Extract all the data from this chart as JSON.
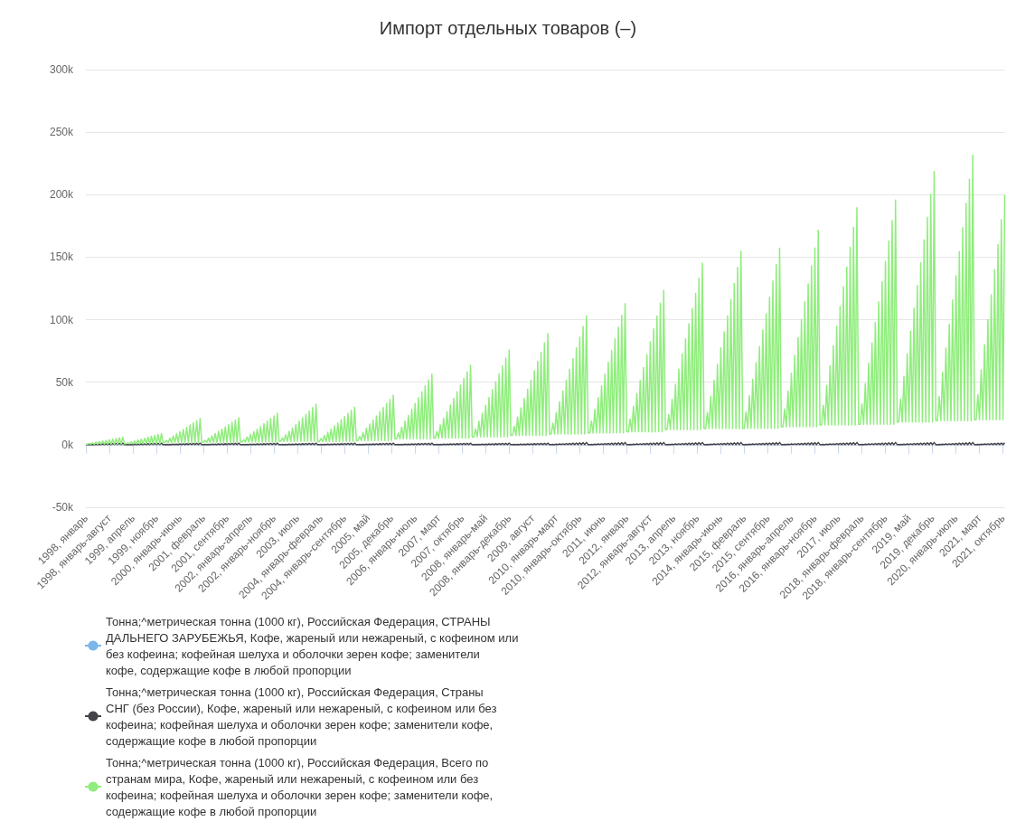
{
  "chart_data": {
    "type": "line",
    "title": "Импорт отдельных товаров (–)",
    "categories": [
      "1998, январь",
      null,
      null,
      null,
      null,
      null,
      null,
      null,
      null,
      null,
      null,
      null,
      null,
      null,
      "1998, январь-август",
      null,
      null,
      null,
      null,
      null,
      null,
      null,
      null,
      null,
      null,
      null,
      null,
      null,
      "1999, апрель",
      null,
      null,
      null,
      null,
      null,
      null,
      null,
      null,
      null,
      null,
      null,
      null,
      null,
      "1999, ноябрь",
      null,
      null,
      null,
      null,
      null,
      null,
      null,
      null,
      null,
      null,
      null,
      null,
      null,
      "2000, январь-июнь",
      null,
      null,
      null,
      null,
      null,
      null,
      null,
      null,
      null,
      null,
      null,
      null,
      null,
      "2001, февраль",
      null,
      null,
      null,
      null,
      null,
      null,
      null,
      null,
      null,
      null,
      null,
      null,
      null,
      "2001, сентябрь",
      null,
      null,
      null,
      null,
      null,
      null,
      null,
      null,
      null,
      null,
      null,
      null,
      null,
      "2002, январь-апрель",
      null,
      null,
      null,
      null,
      null,
      null,
      null,
      null,
      null,
      null,
      null,
      null,
      null,
      "2002, январь-ноябрь",
      null,
      null,
      null,
      null,
      null,
      null,
      null,
      null,
      null,
      null,
      null,
      null,
      null,
      "2003, июль",
      null,
      null,
      null,
      null,
      null,
      null,
      null,
      null,
      null,
      null,
      null,
      null,
      null,
      "2004, январь-февраль",
      null,
      null,
      null,
      null,
      null,
      null,
      null,
      null,
      null,
      null,
      null,
      null,
      null,
      "2004, январь-сентябрь",
      null,
      null,
      null,
      null,
      null,
      null,
      null,
      null,
      null,
      null,
      null,
      null,
      null,
      "2005, май",
      null,
      null,
      null,
      null,
      null,
      null,
      null,
      null,
      null,
      null,
      null,
      null,
      null,
      "2005, декабрь",
      null,
      null,
      null,
      null,
      null,
      null,
      null,
      null,
      null,
      null,
      null,
      null,
      null,
      "2006, январь-июль",
      null,
      null,
      null,
      null,
      null,
      null,
      null,
      null,
      null,
      null,
      null,
      null,
      null,
      "2007, март",
      null,
      null,
      null,
      null,
      null,
      null,
      null,
      null,
      null,
      null,
      null,
      null,
      null,
      "2007, октябрь",
      null,
      null,
      null,
      null,
      null,
      null,
      null,
      null,
      null,
      null,
      null,
      null,
      null,
      "2008, январь-май",
      null,
      null,
      null,
      null,
      null,
      null,
      null,
      null,
      null,
      null,
      null,
      null,
      null,
      "2008, январь-декабрь",
      null,
      null,
      null,
      null,
      null,
      null,
      null,
      null,
      null,
      null,
      null,
      null,
      null,
      "2009, август",
      null,
      null,
      null,
      null,
      null,
      null,
      null,
      null,
      null,
      null,
      null,
      null,
      null,
      "2010, январь-март",
      null,
      null,
      null,
      null,
      null,
      null,
      null,
      null,
      null,
      null,
      null,
      null,
      null,
      "2010, январь-октябрь",
      null,
      null,
      null,
      null,
      null,
      null,
      null,
      null,
      null,
      null,
      null,
      null,
      null,
      "2011, июнь",
      null,
      null,
      null,
      null,
      null,
      null,
      null,
      null,
      null,
      null,
      null,
      null,
      null,
      "2012, январь",
      null,
      null,
      null,
      null,
      null,
      null,
      null,
      null,
      null,
      null,
      null,
      null,
      null,
      "2012, январь-август",
      null,
      null,
      null,
      null,
      null,
      null,
      null,
      null,
      null,
      null,
      null,
      null,
      null,
      "2013, апрель",
      null,
      null,
      null,
      null,
      null,
      null,
      null,
      null,
      null,
      null,
      null,
      null,
      null,
      "2013, ноябрь",
      null,
      null,
      null,
      null,
      null,
      null,
      null,
      null,
      null,
      null,
      null,
      null,
      null,
      "2014, январь-июнь",
      null,
      null,
      null,
      null,
      null,
      null,
      null,
      null,
      null,
      null,
      null,
      null,
      null,
      "2015, февраль",
      null,
      null,
      null,
      null,
      null,
      null,
      null,
      null,
      null,
      null,
      null,
      null,
      null,
      "2015, сентябрь",
      null,
      null,
      null,
      null,
      null,
      null,
      null,
      null,
      null,
      null,
      null,
      null,
      null,
      "2016, январь-апрель",
      null,
      null,
      null,
      null,
      null,
      null,
      null,
      null,
      null,
      null,
      null,
      null,
      null,
      "2016, январь-ноябрь",
      null,
      null,
      null,
      null,
      null,
      null,
      null,
      null,
      null,
      null,
      null,
      null,
      null,
      "2017, июль",
      null,
      null,
      null,
      null,
      null,
      null,
      null,
      null,
      null,
      null,
      null,
      null,
      null,
      "2018, январь-февраль",
      null,
      null,
      null,
      null,
      null,
      null,
      null,
      null,
      null,
      null,
      null,
      null,
      null,
      "2018, январь-сентябрь",
      null,
      null,
      null,
      null,
      null,
      null,
      null,
      null,
      null,
      null,
      null,
      null,
      null,
      "2019, май",
      null,
      null,
      null,
      null,
      null,
      null,
      null,
      null,
      null,
      null,
      null,
      null,
      null,
      "2019, декабрь",
      null,
      null,
      null,
      null,
      null,
      null,
      null,
      null,
      null,
      null,
      null,
      null,
      null,
      "2020, январь-июль",
      null,
      null,
      null,
      null,
      null,
      null,
      null,
      null,
      null,
      null,
      null,
      null,
      null,
      "2021, март",
      null,
      null,
      null,
      null,
      null,
      null,
      null,
      null,
      null,
      null,
      null,
      null,
      null,
      "2021, октябрь",
      null
    ],
    "series": [
      {
        "name": "Тонна;^метрическая тонна (1000 кг), Российская Федерация, СТРАНЫ ДАЛЬНЕГО ЗАРУБЕЖЬЯ, Кофе, жареный или нежареный, с кофеином или без кофеина; кофейная шелуха и оболочки зерен кофе; заменители кофе, содержащие кофе в любой пропорции",
        "color": "#7cb5ec",
        "values": [
          null,
          null,
          null,
          null,
          null,
          null,
          null,
          null,
          null,
          null,
          null,
          null,
          null,
          null,
          null,
          null,
          null,
          null,
          null,
          null,
          null,
          null,
          null,
          null,
          null,
          null,
          null,
          null,
          null,
          null,
          null,
          null,
          null,
          null,
          null,
          null,
          null,
          null,
          null,
          null,
          null,
          null,
          null,
          null,
          null,
          null,
          null,
          null,
          null,
          null,
          null,
          null,
          null,
          null,
          null,
          null,
          null,
          null,
          null,
          null,
          null,
          null,
          null,
          null,
          null,
          null,
          null,
          null,
          null,
          null,
          null,
          null,
          null,
          null,
          null,
          null,
          null,
          null,
          null,
          null,
          null,
          null,
          null,
          null,
          null,
          null,
          null,
          null,
          null,
          null,
          null,
          null,
          null,
          null,
          null,
          null,
          null,
          null,
          null,
          null,
          null,
          null,
          null,
          null,
          null,
          null,
          null,
          null,
          null,
          null,
          null,
          null,
          null,
          null,
          null,
          null,
          null,
          null,
          null,
          null,
          null,
          null,
          null,
          null,
          null,
          null,
          null,
          null,
          null,
          null,
          null,
          null,
          null,
          null,
          null,
          null,
          null,
          null,
          null,
          null,
          null,
          null,
          null,
          null,
          null,
          null,
          null,
          null,
          null,
          null,
          null,
          null,
          null,
          null,
          null,
          null,
          null,
          null,
          null,
          null,
          null,
          null,
          null,
          null,
          null,
          null,
          null,
          null,
          null,
          null,
          null,
          null,
          null,
          null,
          null,
          null,
          null,
          null,
          null,
          null,
          null,
          null,
          null,
          null,
          null,
          null,
          null,
          null,
          null,
          null,
          null,
          null,
          null,
          null,
          null,
          null,
          null,
          null,
          null,
          null,
          null,
          null,
          null,
          null,
          null,
          null,
          null,
          null,
          null,
          null,
          null,
          null,
          null,
          null,
          null,
          null,
          null,
          null,
          null,
          null,
          null,
          null,
          null,
          null,
          null,
          null,
          null,
          null,
          null,
          null,
          null,
          null,
          null,
          null,
          null,
          null,
          null,
          null,
          null,
          null,
          null,
          null,
          null,
          null,
          null,
          null,
          null,
          null,
          null,
          null,
          null,
          null,
          null,
          null,
          null,
          null,
          null,
          null,
          null,
          null,
          null,
          null,
          null,
          null,
          null,
          null,
          null,
          null,
          null,
          null,
          null,
          null,
          null,
          null,
          null,
          null,
          null,
          null,
          null,
          null,
          null,
          null,
          null,
          null,
          null,
          null,
          null,
          null,
          null,
          null,
          null,
          null,
          null,
          null,
          null,
          null,
          null,
          null,
          null,
          null,
          null,
          null,
          null,
          null,
          null,
          null,
          null,
          null,
          null,
          null,
          null,
          null,
          null,
          null,
          null,
          null,
          null,
          null,
          null,
          null,
          null,
          null,
          null,
          null,
          null,
          null,
          null,
          null,
          null,
          null,
          null,
          null,
          null,
          null,
          null,
          null,
          null,
          null,
          null,
          null,
          null,
          null,
          null,
          null,
          null,
          null,
          null,
          null,
          null,
          null,
          null,
          null,
          null,
          null,
          null,
          null,
          null,
          null,
          null,
          null,
          null,
          null,
          null,
          null,
          null,
          null,
          null,
          null,
          null,
          null,
          null,
          null,
          null,
          null,
          null,
          null,
          null,
          null,
          null,
          null,
          null,
          null,
          null,
          null,
          null,
          null,
          null,
          null,
          null,
          null,
          null,
          null,
          null,
          null,
          null,
          null,
          null,
          null,
          null,
          null,
          null,
          null,
          null,
          null,
          null,
          null,
          null,
          null,
          null,
          null,
          null,
          null,
          null,
          null,
          null,
          null,
          null,
          null,
          null,
          null,
          null,
          null,
          null,
          null,
          null,
          null,
          null,
          null,
          null,
          null,
          null,
          null,
          null,
          null,
          null,
          null,
          null,
          null,
          null,
          null,
          null,
          null,
          null,
          null,
          null,
          null,
          null,
          null,
          null,
          null,
          null,
          null,
          null,
          null,
          null,
          null,
          null,
          null,
          null,
          null,
          null,
          null,
          null,
          null,
          null,
          null,
          null,
          null,
          null,
          null,
          null,
          null,
          null,
          null,
          null,
          null,
          null,
          null,
          null,
          null,
          null,
          null,
          null,
          null,
          null,
          null,
          null,
          null,
          null,
          null,
          null,
          null,
          null,
          null,
          null,
          null,
          null,
          null,
          null,
          null,
          null,
          null,
          null,
          null,
          null,
          null,
          null,
          null,
          null,
          null,
          null,
          null,
          null,
          null,
          null,
          null,
          null,
          null,
          null,
          null,
          null,
          null,
          null,
          null,
          null,
          null,
          null,
          null,
          null,
          null,
          null,
          null,
          null,
          null,
          null,
          null,
          null,
          null,
          null,
          null,
          null,
          null,
          null,
          null,
          null,
          null,
          null,
          null
        ]
      },
      {
        "name": "Тонна;^метрическая тонна (1000 кг), Российская Федерация, Страны СНГ (без России), Кофе, жареный или нежареный, с кофеином или без кофеина; кофейная шелуха и оболочки зерен кофе; заменители кофе, содержащие кофе в любой пропорции",
        "color": "#434348",
        "values": [
          100,
          100,
          200,
          100,
          300,
          100,
          400,
          100,
          500,
          100,
          600,
          100,
          700,
          100,
          800,
          100,
          900,
          100,
          1000,
          100,
          1100,
          100,
          1200,
          100,
          100,
          200,
          100,
          300,
          100,
          400,
          100,
          500,
          100,
          600,
          100,
          700,
          100,
          800,
          100,
          900,
          100,
          1000,
          100,
          1100,
          100,
          1200,
          100,
          100,
          200,
          100,
          300,
          100,
          400,
          100,
          500,
          100,
          600,
          100,
          700,
          100,
          800,
          100,
          900,
          100,
          1000,
          100,
          1100,
          100,
          1200,
          100,
          100,
          200,
          100,
          300,
          100,
          400,
          100,
          500,
          100,
          600,
          100,
          700,
          100,
          800,
          100,
          900,
          100,
          1000,
          100,
          1100,
          100,
          1200,
          100,
          100,
          200,
          100,
          300,
          100,
          400,
          100,
          500,
          100,
          600,
          100,
          700,
          100,
          800,
          100,
          900,
          100,
          1000,
          100,
          1100,
          100,
          1200,
          100,
          100,
          200,
          100,
          300,
          100,
          400,
          100,
          500,
          100,
          600,
          100,
          700,
          100,
          800,
          100,
          900,
          100,
          1000,
          100,
          1100,
          100,
          1200,
          100,
          100,
          200,
          100,
          300,
          100,
          400,
          100,
          500,
          100,
          600,
          100,
          700,
          100,
          800,
          100,
          900,
          100,
          1000,
          100,
          1100,
          100,
          1200,
          100,
          100,
          200,
          100,
          300,
          100,
          400,
          100,
          500,
          100,
          600,
          100,
          700,
          100,
          800,
          100,
          900,
          100,
          1000,
          100,
          1100,
          100,
          1200,
          100,
          100,
          200,
          100,
          300,
          100,
          400,
          100,
          500,
          100,
          600,
          100,
          700,
          100,
          800,
          100,
          900,
          100,
          1000,
          100,
          1100,
          100,
          1200,
          100,
          100,
          200,
          100,
          300,
          100,
          400,
          100,
          500,
          100,
          600,
          100,
          700,
          100,
          800,
          100,
          900,
          100,
          1000,
          100,
          1100,
          100,
          1200,
          100,
          100,
          200,
          100,
          300,
          100,
          400,
          100,
          500,
          100,
          600,
          100,
          700,
          100,
          800,
          100,
          900,
          100,
          1000,
          100,
          1100,
          100,
          1200,
          100,
          100,
          200,
          100,
          300,
          100,
          400,
          100,
          500,
          100,
          600,
          100,
          700,
          100,
          800,
          100,
          900,
          100,
          1000,
          100,
          1100,
          100,
          1200,
          150,
          150,
          300,
          150,
          450,
          150,
          600,
          150,
          750,
          150,
          900,
          150,
          1050,
          150,
          1200,
          150,
          1350,
          150,
          1500,
          150,
          1650,
          150,
          1800,
          150,
          150,
          300,
          150,
          450,
          150,
          600,
          150,
          750,
          150,
          900,
          150,
          1050,
          150,
          1200,
          150,
          1350,
          150,
          1500,
          150,
          1650,
          150,
          1800,
          150,
          150,
          300,
          150,
          450,
          150,
          600,
          150,
          750,
          150,
          900,
          150,
          1050,
          150,
          1200,
          150,
          1350,
          150,
          1500,
          150,
          1650,
          150,
          1800,
          150,
          150,
          300,
          150,
          450,
          150,
          600,
          150,
          750,
          150,
          900,
          150,
          1050,
          150,
          1200,
          150,
          1350,
          150,
          1500,
          150,
          1650,
          150,
          1800,
          150,
          150,
          300,
          150,
          450,
          150,
          600,
          150,
          750,
          150,
          900,
          150,
          1050,
          150,
          1200,
          150,
          1350,
          150,
          1500,
          150,
          1650,
          150,
          1800,
          150,
          150,
          300,
          150,
          450,
          150,
          600,
          150,
          750,
          150,
          900,
          150,
          1050,
          150,
          1200,
          150,
          1350,
          150,
          1500,
          150,
          1650,
          150,
          1800,
          150,
          150,
          300,
          150,
          450,
          150,
          600,
          150,
          750,
          150,
          900,
          150,
          1050,
          150,
          1200,
          150,
          1350,
          150,
          1500,
          150,
          1650,
          150,
          1800,
          150,
          150,
          300,
          150,
          450,
          150,
          600,
          150,
          750,
          150,
          900,
          150,
          1050,
          150,
          1200,
          150,
          1350,
          150,
          1500,
          150,
          1650,
          150,
          1800,
          150,
          150,
          300,
          150,
          450,
          150,
          600,
          150,
          750,
          150,
          900,
          150,
          1050,
          150,
          1200,
          150,
          1350,
          150,
          1500,
          150,
          1650,
          150,
          1800,
          150,
          150,
          300,
          150,
          450,
          150,
          600,
          150,
          750,
          150,
          900,
          150,
          1050,
          150,
          1200,
          150,
          1350,
          150,
          1500,
          150,
          1650,
          150,
          1800,
          150,
          150,
          300,
          150,
          450,
          150,
          600,
          150,
          750,
          150,
          900,
          150,
          1050,
          150,
          1200,
          150,
          1350,
          150,
          1500,
          150,
          1650,
          150,
          1800,
          150,
          150,
          300,
          150,
          450,
          150,
          600,
          150,
          750,
          150,
          900,
          150,
          1050,
          150,
          1200,
          150,
          1350,
          150,
          1500
        ]
      },
      {
        "name": "Тонна;^метрическая тонна (1000 кг), Российская Федерация, Всего по странам мира, Кофе, жареный или нежареный, с кофеином или без кофеина; кофейная шелуха и оболочки зерен кофе; заменители кофе, содержащие кофе в любой пропорции",
        "color": "#90ed7d",
        "values": [
          500,
          500,
          1000,
          500,
          1500,
          500,
          2000,
          500,
          2500,
          500,
          3000,
          500,
          3500,
          500,
          4000,
          500,
          4500,
          500,
          5000,
          500,
          5500,
          500,
          6000,
          750,
          750,
          1500,
          750,
          2250,
          750,
          3000,
          750,
          3750,
          750,
          4500,
          750,
          5250,
          750,
          6000,
          750,
          6750,
          750,
          7500,
          750,
          8250,
          750,
          9000,
          1750,
          1750,
          3500,
          1750,
          5250,
          1750,
          7000,
          1750,
          8750,
          1750,
          10500,
          1750,
          12250,
          1750,
          14000,
          1750,
          15750,
          1750,
          17500,
          1750,
          19250,
          1750,
          21000,
          1800,
          1800,
          3600,
          1800,
          5400,
          1800,
          7200,
          1800,
          9000,
          1800,
          10800,
          1800,
          12600,
          1800,
          14400,
          1800,
          16200,
          1800,
          18000,
          1800,
          19800,
          1800,
          21600,
          2100,
          2100,
          4200,
          2100,
          6300,
          2100,
          8400,
          2100,
          10500,
          2100,
          12600,
          2100,
          14700,
          2100,
          16800,
          2100,
          18900,
          2100,
          21000,
          2100,
          23100,
          2100,
          25200,
          2700,
          2700,
          5400,
          2700,
          8100,
          2700,
          10800,
          2700,
          13500,
          2700,
          16200,
          2700,
          18900,
          2700,
          21600,
          2700,
          24300,
          2700,
          27000,
          2700,
          29700,
          2700,
          32400,
          2500,
          2500,
          5000,
          2500,
          7500,
          2500,
          10000,
          2500,
          12500,
          2500,
          15000,
          2500,
          17500,
          2500,
          20000,
          2500,
          22500,
          2500,
          25000,
          2500,
          27500,
          2500,
          30000,
          3300,
          3300,
          6600,
          3300,
          9900,
          3300,
          13200,
          3300,
          16500,
          3300,
          19800,
          3300,
          23100,
          3300,
          26400,
          3300,
          29700,
          3300,
          33000,
          3300,
          36300,
          3300,
          39600,
          4700,
          4700,
          9400,
          4700,
          14100,
          4700,
          18800,
          4700,
          23500,
          4700,
          28200,
          4700,
          32900,
          4700,
          37600,
          4700,
          42300,
          4700,
          47000,
          4700,
          51700,
          4700,
          56400,
          5300,
          5300,
          10600,
          5300,
          15900,
          5300,
          21200,
          5300,
          26500,
          5300,
          31800,
          5300,
          37100,
          5300,
          42400,
          5300,
          47700,
          5300,
          53000,
          5300,
          58300,
          5300,
          63600,
          6300,
          6300,
          12600,
          6300,
          18900,
          6300,
          25200,
          6300,
          31500,
          6300,
          37800,
          6300,
          44100,
          6300,
          50400,
          6300,
          56700,
          6300,
          63000,
          6300,
          69300,
          6300,
          75600,
          7400,
          7400,
          14800,
          7400,
          22200,
          7400,
          29600,
          7400,
          37000,
          7400,
          44400,
          7400,
          51800,
          7400,
          59200,
          7400,
          66600,
          7400,
          74000,
          7400,
          81400,
          7400,
          88800,
          8600,
          8600,
          17200,
          8600,
          25800,
          8600,
          34400,
          8600,
          43000,
          8600,
          51600,
          8600,
          60200,
          8600,
          68800,
          8600,
          77400,
          8600,
          86000,
          8600,
          94600,
          8600,
          103200,
          9400,
          9400,
          18800,
          9400,
          28200,
          9400,
          37600,
          9400,
          47000,
          9400,
          56400,
          9400,
          65800,
          9400,
          75200,
          9400,
          84600,
          9400,
          94000,
          9400,
          103400,
          9400,
          112800,
          10300,
          10300,
          20600,
          10300,
          30900,
          10300,
          41200,
          10300,
          51500,
          10300,
          61800,
          10300,
          72100,
          10300,
          82400,
          10300,
          92700,
          10300,
          103000,
          10300,
          113300,
          10300,
          123600,
          12100,
          12100,
          24200,
          12100,
          36300,
          12100,
          48400,
          12100,
          60500,
          12100,
          72600,
          12100,
          84700,
          12100,
          96800,
          12100,
          108900,
          12100,
          121000,
          12100,
          133100,
          12100,
          145200,
          12900,
          12900,
          25800,
          12900,
          38700,
          12900,
          51600,
          12900,
          64500,
          12900,
          77400,
          12900,
          90300,
          12900,
          103200,
          12900,
          116100,
          12900,
          129000,
          12900,
          141900,
          12900,
          154800,
          13100,
          13100,
          26200,
          13100,
          39300,
          13100,
          52400,
          13100,
          65500,
          13100,
          78600,
          13100,
          91700,
          13100,
          104800,
          13100,
          117900,
          13100,
          131000,
          13100,
          144100,
          13100,
          157200,
          14300,
          14300,
          28600,
          14300,
          42900,
          14300,
          57200,
          14300,
          71500,
          14300,
          85800,
          14300,
          100100,
          14300,
          114400,
          14300,
          128700,
          14300,
          143000,
          14300,
          157300,
          14300,
          171600,
          15800,
          15800,
          31600,
          15800,
          47400,
          15800,
          63200,
          15800,
          79000,
          15800,
          94800,
          15800,
          110600,
          15800,
          126400,
          15800,
          142200,
          15800,
          158000,
          15800,
          173800,
          15800,
          189600,
          16300,
          16300,
          32600,
          16300,
          48900,
          16300,
          65200,
          16300,
          81500,
          16300,
          97800,
          16300,
          114100,
          16300,
          130400,
          16300,
          146700,
          16300,
          163000,
          16300,
          179300,
          16300,
          195600,
          18200,
          18200,
          36400,
          18200,
          54600,
          18200,
          72800,
          18200,
          91000,
          18200,
          109200,
          18200,
          127400,
          18200,
          145600,
          18200,
          163800,
          18200,
          182000,
          18200,
          200200,
          18200,
          218400,
          19300,
          19300,
          38600,
          19300,
          57900,
          19300,
          77200,
          19300,
          96500,
          19300,
          115800,
          19300,
          135100,
          19300,
          154400,
          19300,
          173700,
          19300,
          193000,
          19300,
          212300,
          19300,
          231600,
          20000,
          20000,
          40000,
          20000,
          60000,
          20000,
          80000,
          20000,
          100000,
          20000,
          120000,
          20000,
          140000,
          20000,
          160000,
          20000,
          180000,
          20000,
          200000
        ]
      }
    ],
    "ylim": [
      -50000,
      300000
    ],
    "yticks": [
      {
        "value": -50000,
        "label": "-50k"
      },
      {
        "value": 0,
        "label": "0k"
      },
      {
        "value": 50000,
        "label": "50k"
      },
      {
        "value": 100000,
        "label": "100k"
      },
      {
        "value": 150000,
        "label": "150k"
      },
      {
        "value": 200000,
        "label": "200k"
      },
      {
        "value": 250000,
        "label": "250k"
      },
      {
        "value": 300000,
        "label": "300k"
      }
    ],
    "grid": "y",
    "legend": "bottom"
  }
}
